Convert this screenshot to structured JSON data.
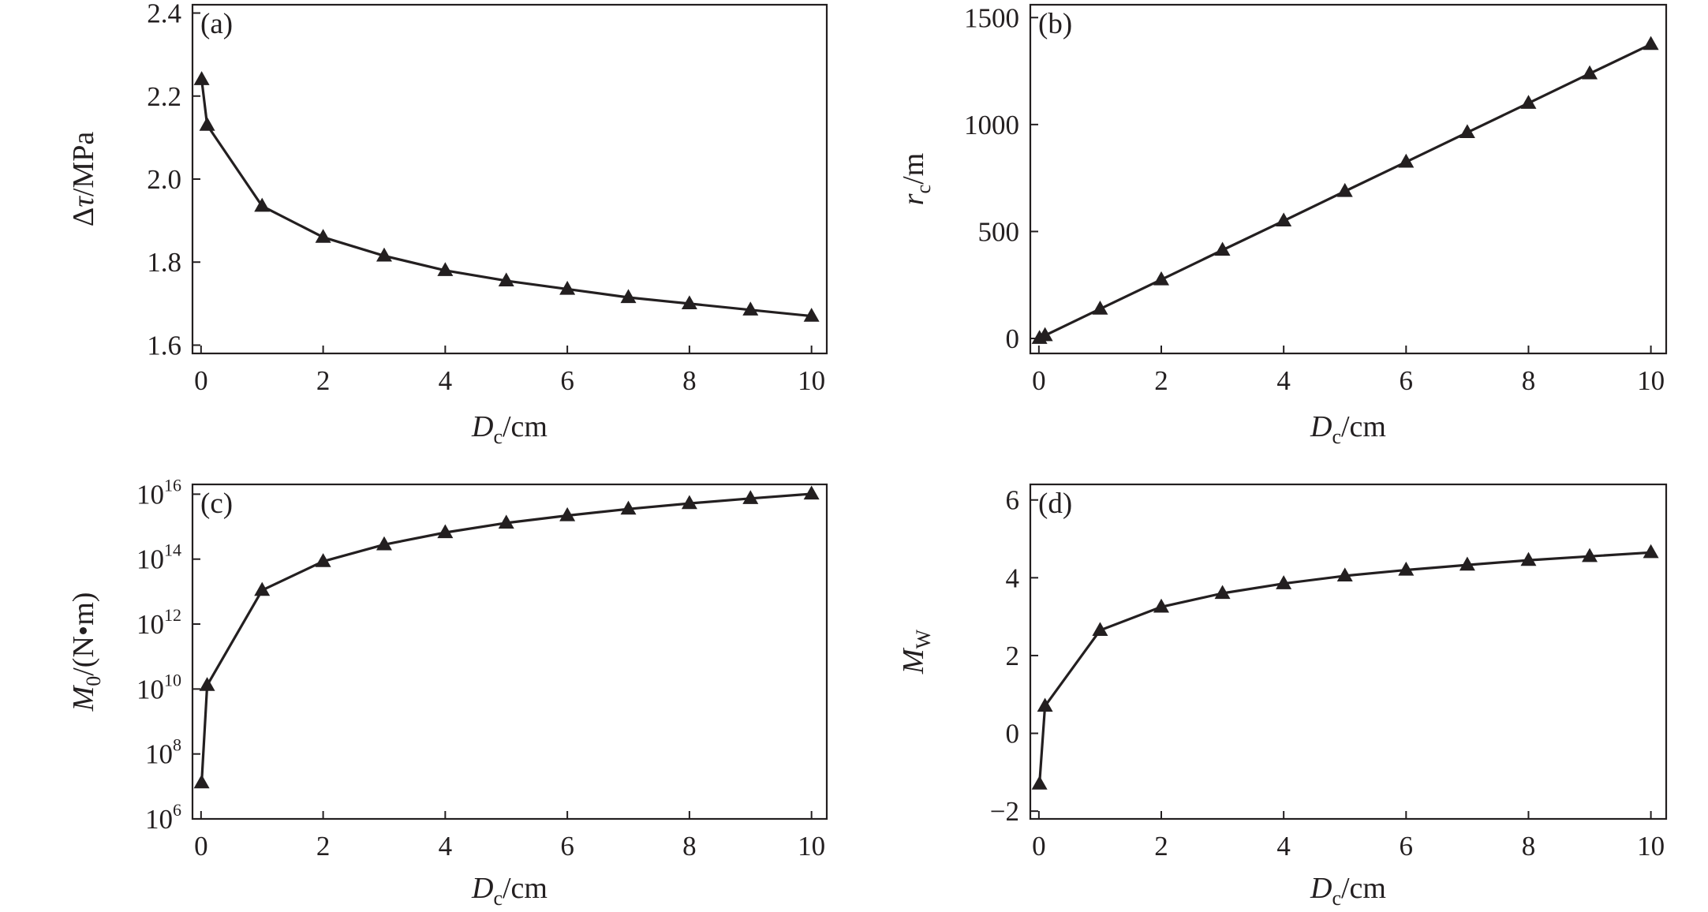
{
  "chart_data": [
    {
      "type": "line",
      "panel_label": "(a)",
      "xlabel": {
        "var": "D",
        "sub": "c",
        "unit": "/cm"
      },
      "ylabel": {
        "prefix": "Δ",
        "var": "τ",
        "unit": "/MPa"
      },
      "xlim": [
        0,
        10
      ],
      "ylim": [
        1.58,
        2.42
      ],
      "yscale": "linear",
      "xticks": [
        0,
        2,
        4,
        6,
        8,
        10
      ],
      "xtick_labels": [
        "0",
        "2",
        "4",
        "6",
        "8",
        "10"
      ],
      "yticks": [
        1.6,
        1.8,
        2.0,
        2.2,
        2.4
      ],
      "ytick_labels": [
        "1.6",
        "1.8",
        "2.0",
        "2.2",
        "2.4"
      ],
      "series": [
        {
          "marker": "triangle",
          "color": "#231f20",
          "x": [
            0.01,
            0.1,
            1,
            2,
            3,
            4,
            5,
            6,
            7,
            8,
            9,
            10
          ],
          "y": [
            2.24,
            2.13,
            1.935,
            1.86,
            1.815,
            1.78,
            1.755,
            1.735,
            1.715,
            1.7,
            1.685,
            1.67
          ]
        }
      ]
    },
    {
      "type": "line",
      "panel_label": "(b)",
      "xlabel": {
        "var": "D",
        "sub": "c",
        "unit": "/cm"
      },
      "ylabel": {
        "var": "r",
        "sub": "c",
        "unit": "/m"
      },
      "xlim": [
        0,
        10
      ],
      "ylim": [
        -70,
        1560
      ],
      "yscale": "linear",
      "xticks": [
        0,
        2,
        4,
        6,
        8,
        10
      ],
      "xtick_labels": [
        "0",
        "2",
        "4",
        "6",
        "8",
        "10"
      ],
      "yticks": [
        0,
        500,
        1000,
        1500
      ],
      "ytick_labels": [
        "0",
        "500",
        "1000",
        "1500"
      ],
      "series": [
        {
          "marker": "triangle",
          "color": "#231f20",
          "x": [
            0.01,
            0.1,
            1,
            2,
            3,
            4,
            5,
            6,
            7,
            8,
            9,
            10
          ],
          "y": [
            1,
            14,
            138,
            275,
            413,
            550,
            688,
            825,
            963,
            1100,
            1238,
            1375
          ]
        }
      ]
    },
    {
      "type": "line",
      "panel_label": "(c)",
      "xlabel": {
        "var": "D",
        "sub": "c",
        "unit": "/cm"
      },
      "ylabel": {
        "var": "M",
        "sub": "0",
        "unit": "/(N•m)"
      },
      "xlim": [
        0,
        10
      ],
      "ylim": [
        1000000.0,
        2e+16
      ],
      "yscale": "log",
      "xticks": [
        0,
        2,
        4,
        6,
        8,
        10
      ],
      "xtick_labels": [
        "0",
        "2",
        "4",
        "6",
        "8",
        "10"
      ],
      "yticks": [
        1000000.0,
        100000000.0,
        10000000000.0,
        1000000000000.0,
        100000000000000.0,
        1e+16
      ],
      "ytick_labels": [
        [
          "10",
          "6"
        ],
        [
          "10",
          "8"
        ],
        [
          "10",
          "10"
        ],
        [
          "10",
          "12"
        ],
        [
          "10",
          "14"
        ],
        [
          "10",
          "16"
        ]
      ],
      "series": [
        {
          "marker": "triangle",
          "color": "#231f20",
          "x": [
            0.01,
            0.1,
            1,
            2,
            3,
            4,
            5,
            6,
            7,
            8,
            9,
            10
          ],
          "y": [
            13000000.0,
            13000000000.0,
            11000000000000.0,
            85000000000000.0,
            280000000000000.0,
            660000000000000.0,
            1300000000000000.0,
            2200000000000000.0,
            3500000000000000.0,
            5200000000000000.0,
            7400000000000000.0,
            1.02e+16
          ]
        }
      ]
    },
    {
      "type": "line",
      "panel_label": "(d)",
      "xlabel": {
        "var": "D",
        "sub": "c",
        "unit": "/cm"
      },
      "ylabel": {
        "var": "M",
        "sub": "W",
        "unit": ""
      },
      "xlim": [
        0,
        10
      ],
      "ylim": [
        -2.2,
        6.4
      ],
      "yscale": "linear",
      "xticks": [
        0,
        2,
        4,
        6,
        8,
        10
      ],
      "xtick_labels": [
        "0",
        "2",
        "4",
        "6",
        "8",
        "10"
      ],
      "yticks": [
        -2,
        0,
        2,
        4,
        6
      ],
      "ytick_labels": [
        "−2",
        "0",
        "2",
        "4",
        "6"
      ],
      "series": [
        {
          "marker": "triangle",
          "color": "#231f20",
          "x": [
            0.01,
            0.1,
            1,
            2,
            3,
            4,
            5,
            6,
            7,
            8,
            9,
            10
          ],
          "y": [
            -1.3,
            0.7,
            2.65,
            3.25,
            3.6,
            3.85,
            4.05,
            4.2,
            4.33,
            4.45,
            4.55,
            4.65
          ]
        }
      ]
    }
  ]
}
